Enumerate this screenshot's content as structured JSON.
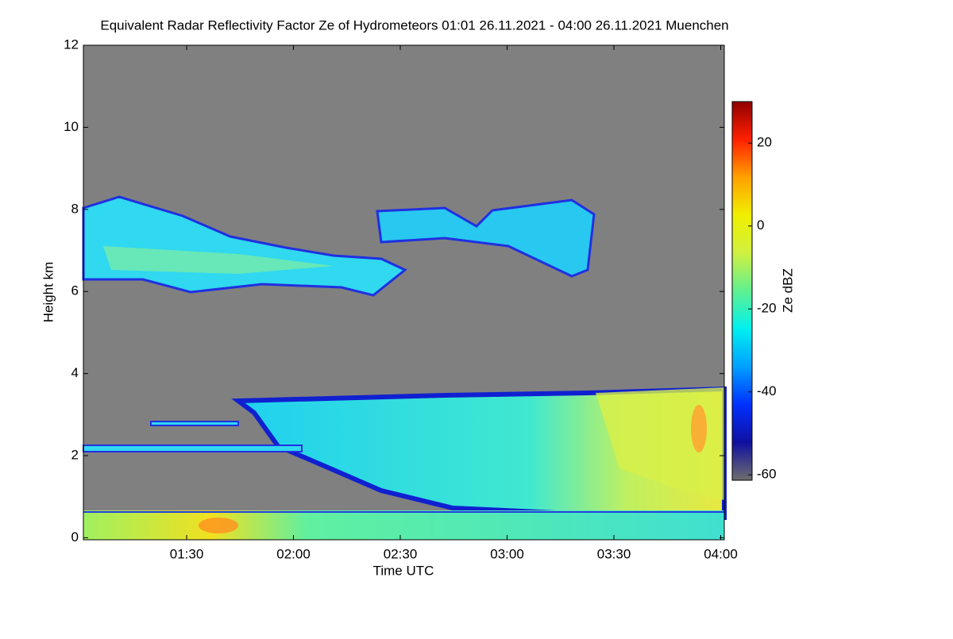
{
  "chart_data": {
    "type": "heatmap",
    "title": "Equivalent Radar Reflectivity Factor Ze of Hydrometeors   01:01 26.11.2021 - 04:00 26.11.2021 Muenchen",
    "x_label": "Time UTC",
    "y_label": "Height km",
    "xlim": [
      "01:01",
      "04:01"
    ],
    "xticks": [
      "01:30",
      "02:00",
      "02:30",
      "03:00",
      "03:30",
      "04:00"
    ],
    "ylim": [
      -0.05,
      12
    ],
    "yticks": [
      0,
      2,
      4,
      6,
      8,
      10,
      12
    ],
    "colorbar": {
      "label": "Ze dBZ",
      "lim": [
        -61.3,
        30
      ],
      "ticks": [
        -60,
        -40,
        -20,
        0,
        20
      ],
      "colormap": [
        "#6e6e6e",
        "#1010a0",
        "#0030ff",
        "#00a0ff",
        "#00f0f0",
        "#60f090",
        "#d0f040",
        "#f0f000",
        "#ffa000",
        "#ff2000",
        "#900000"
      ]
    },
    "background": "#808080"
  }
}
